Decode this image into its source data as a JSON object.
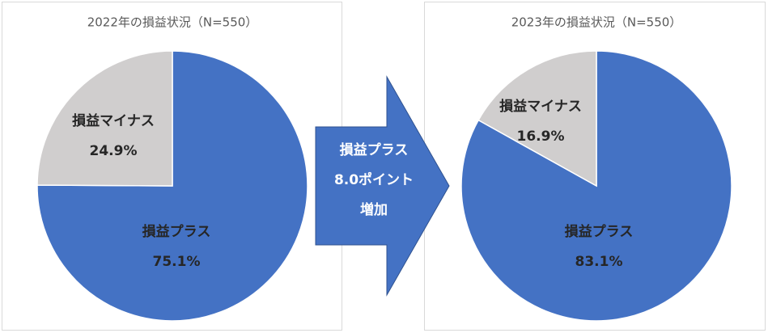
{
  "chart_data": [
    {
      "type": "pie",
      "title": "2022年の損益状況（N=550）",
      "categories": [
        "損益プラス",
        "損益マイナス"
      ],
      "values": [
        75.1,
        24.9
      ],
      "value_labels": [
        "75.1%",
        "24.9%"
      ],
      "colors": [
        "#4472c4",
        "#d0cece"
      ]
    },
    {
      "type": "pie",
      "title": "2023年の損益状況（N=550）",
      "categories": [
        "損益プラス",
        "損益マイナス"
      ],
      "values": [
        83.1,
        16.9
      ],
      "value_labels": [
        "83.1%",
        "16.9%"
      ],
      "colors": [
        "#4472c4",
        "#d0cece"
      ]
    }
  ],
  "arrow": {
    "lines": [
      "損益プラス",
      "8.0ポイント",
      "増加"
    ]
  }
}
